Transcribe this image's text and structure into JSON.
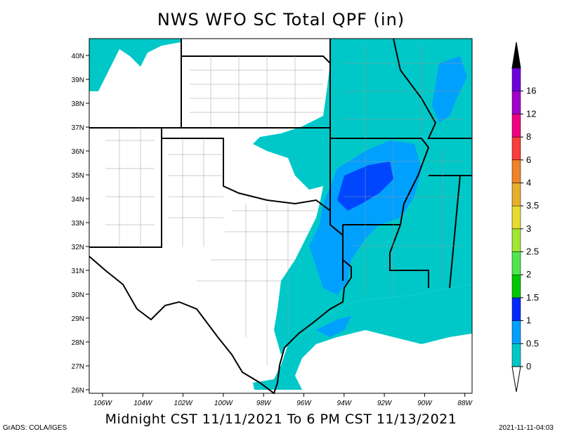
{
  "title": "NWS WFO SC Total QPF (in)",
  "subtitle": "Midnight CST 11/11/2021 To 6 PM CST 11/13/2021",
  "credit": "GrADS: COLA/IGES",
  "timestamp": "2021-11-11-04:03",
  "map": {
    "latitudes": [
      "40N",
      "39N",
      "38N",
      "37N",
      "36N",
      "35N",
      "34N",
      "33N",
      "32N",
      "31N",
      "30N",
      "29N",
      "28N",
      "27N",
      "26N"
    ],
    "longitudes": [
      "106W",
      "104W",
      "102W",
      "100W",
      "98W",
      "96W",
      "94W",
      "92W",
      "90W",
      "88W"
    ]
  },
  "legend": {
    "unit": "in",
    "levels": [
      {
        "label": "0",
        "color": "#00c8c8"
      },
      {
        "label": "0.5",
        "color": "#00a0ff"
      },
      {
        "label": "1",
        "color": "#0028ff"
      },
      {
        "label": "1.5",
        "color": "#00c800"
      },
      {
        "label": "2",
        "color": "#50e650"
      },
      {
        "label": "2.5",
        "color": "#a0e632"
      },
      {
        "label": "3",
        "color": "#e6dc32"
      },
      {
        "label": "3.5",
        "color": "#e6af2d"
      },
      {
        "label": "4",
        "color": "#f08228"
      },
      {
        "label": "6",
        "color": "#fa3c3c"
      },
      {
        "label": "8",
        "color": "#f00082"
      },
      {
        "label": "12",
        "color": "#a000c8"
      },
      {
        "label": "16",
        "color": "#6e00dc"
      }
    ],
    "over_color": "#000000",
    "under_color": "#ffffff"
  }
}
